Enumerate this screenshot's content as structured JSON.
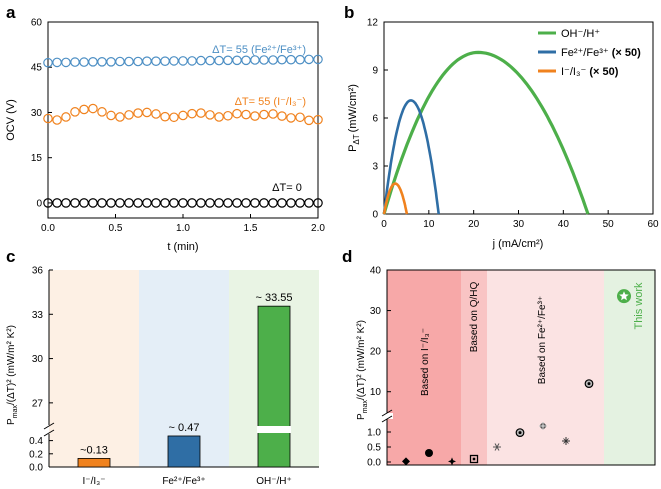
{
  "colors": {
    "green": "#4daf4a",
    "blue": "#2f6ea5",
    "orange": "#f0821e",
    "black": "#000000"
  },
  "chart_data": [
    {
      "panel": "a",
      "type": "scatter",
      "xlabel": "t (min)",
      "ylabel": "OCV (V)",
      "xlim": [
        0,
        2.0
      ],
      "ylim": [
        -5,
        60
      ],
      "xticks": [
        "0.0",
        "0.5",
        "1.0",
        "1.5",
        "2.0"
      ],
      "yticks": [
        "0",
        "15",
        "30",
        "45",
        "60"
      ],
      "series": [
        {
          "name": "ΔT= 55 (Fe²⁺/Fe³⁺)",
          "color": "#4d8fc4",
          "x": [
            0,
            0.067,
            0.133,
            0.2,
            0.267,
            0.333,
            0.4,
            0.467,
            0.533,
            0.6,
            0.667,
            0.733,
            0.8,
            0.867,
            0.933,
            1.0,
            1.067,
            1.133,
            1.2,
            1.267,
            1.333,
            1.4,
            1.467,
            1.533,
            1.6,
            1.667,
            1.733,
            1.8,
            1.867,
            1.933,
            2.0
          ],
          "values": [
            46.5,
            46.6,
            46.6,
            46.7,
            46.7,
            46.8,
            46.8,
            46.8,
            46.9,
            46.9,
            46.9,
            47.0,
            47.0,
            47.0,
            47.1,
            47.1,
            47.1,
            47.2,
            47.2,
            47.2,
            47.3,
            47.3,
            47.3,
            47.4,
            47.4,
            47.4,
            47.5,
            47.5,
            47.5,
            47.6,
            47.6
          ]
        },
        {
          "name": "ΔT= 55 (I⁻/I₃⁻)",
          "color": "#f0821e",
          "x": [
            0,
            0.067,
            0.133,
            0.2,
            0.267,
            0.333,
            0.4,
            0.467,
            0.533,
            0.6,
            0.667,
            0.733,
            0.8,
            0.867,
            0.933,
            1.0,
            1.067,
            1.133,
            1.2,
            1.267,
            1.333,
            1.4,
            1.467,
            1.533,
            1.6,
            1.667,
            1.733,
            1.8,
            1.867,
            1.933,
            2.0
          ],
          "values": [
            28.0,
            27.5,
            28.5,
            30.2,
            31.0,
            31.3,
            30.2,
            29.0,
            28.5,
            29.2,
            29.8,
            30.0,
            29.5,
            28.6,
            28.4,
            29.0,
            29.6,
            29.8,
            29.2,
            28.5,
            28.9,
            29.6,
            29.3,
            28.8,
            29.3,
            29.5,
            28.8,
            28.2,
            28.4,
            27.4,
            27.6
          ]
        },
        {
          "name": "ΔT= 0",
          "color": "#000000",
          "x": [
            0,
            0.067,
            0.133,
            0.2,
            0.267,
            0.333,
            0.4,
            0.467,
            0.533,
            0.6,
            0.667,
            0.733,
            0.8,
            0.867,
            0.933,
            1.0,
            1.067,
            1.133,
            1.2,
            1.267,
            1.333,
            1.4,
            1.467,
            1.533,
            1.6,
            1.667,
            1.733,
            1.8,
            1.867,
            1.933,
            2.0
          ],
          "values": [
            0,
            0,
            0,
            0,
            0,
            0,
            0,
            0,
            0,
            0,
            0,
            0,
            0,
            0,
            0,
            0,
            0,
            0,
            0,
            0,
            0,
            0,
            0,
            0,
            0,
            0,
            0,
            0,
            0,
            0,
            0
          ]
        }
      ]
    },
    {
      "panel": "b",
      "type": "line",
      "xlabel": "j (mA/cm²)",
      "ylabel_main": "P",
      "ylabel_sub": "ΔT",
      "ylabel_unit": "(mW/cm²)",
      "xlim": [
        0,
        60
      ],
      "ylim": [
        0,
        12
      ],
      "xticks": [
        "0",
        "10",
        "20",
        "30",
        "40",
        "50",
        "60"
      ],
      "yticks": [
        "0",
        "3",
        "6",
        "9",
        "12"
      ],
      "legend_position": "top-right",
      "series": [
        {
          "name": "OH⁻/H⁺",
          "color": "#4daf4a",
          "jsc": 45.5,
          "x_peak": 21,
          "pmax": 10.1
        },
        {
          "name": "Fe²⁺/Fe³⁺",
          "suffix": "(× 50)",
          "color": "#2f6ea5",
          "jsc": 12.2,
          "x_peak": 6,
          "pmax": 7.1
        },
        {
          "name": "I⁻/I₃⁻",
          "suffix": "(× 50)",
          "color": "#f0821e",
          "jsc": 5.1,
          "x_peak": 2.5,
          "pmax": 1.9
        }
      ]
    },
    {
      "panel": "c",
      "type": "bar",
      "ylabel": "Pmax/(ΔT)² (mW/m² K²)",
      "categories": [
        "I⁻/I₃⁻",
        "Fe²⁺/Fe³⁺",
        "OH⁻/H⁺"
      ],
      "values": [
        0.13,
        0.47,
        33.55
      ],
      "data_labels": [
        "~0.13",
        "~ 0.47",
        "~ 33.55"
      ],
      "colors": [
        "#f0821e",
        "#2f6ea5",
        "#4daf4a"
      ],
      "bg_colors": [
        "#fdf0e4",
        "#e4eef7",
        "#e9f4e4"
      ],
      "ylim_lower": [
        0,
        0.5
      ],
      "ylim_upper": [
        25.5,
        36
      ],
      "yticks_lower": [
        "0.0",
        "0.2",
        "0.4"
      ],
      "yticks_upper": [
        "27",
        "30",
        "33",
        "36"
      ]
    },
    {
      "panel": "d",
      "type": "scatter",
      "ylabel": "Pmax/(ΔT)² (mW/m² K²)",
      "ylim_lower": [
        -0.1,
        1.4
      ],
      "ylim_upper": [
        5,
        40
      ],
      "yticks_lower": [
        "0.0",
        "0.5",
        "1.0"
      ],
      "yticks_upper": [
        "10",
        "20",
        "30",
        "40"
      ],
      "regions": [
        {
          "label": "Based on I⁻/I₃⁻",
          "color": "#f7a8a8"
        },
        {
          "label": "Based on Q/HQ",
          "color": "#f9c4c4"
        },
        {
          "label": "Based on Fe²⁺/Fe³⁺",
          "color": "#fbe3e3"
        },
        {
          "label": "This work",
          "color": "#e4f2e1"
        }
      ],
      "points": [
        {
          "marker": "diamond",
          "value": 0.02
        },
        {
          "marker": "circle",
          "value": 0.3
        },
        {
          "marker": "star4",
          "value": 0.02
        },
        {
          "marker": "square-dot",
          "value": 0.1
        },
        {
          "marker": "asterisk",
          "value": 0.5
        },
        {
          "marker": "circle-dot",
          "value": 0.98
        },
        {
          "marker": "cross-diamond",
          "value": 1.2
        },
        {
          "marker": "plus-cross",
          "value": 0.7
        },
        {
          "marker": "circle-dot",
          "value": 12
        },
        {
          "marker": "star-circle",
          "value": 33.55,
          "color": "#4daf4a"
        }
      ]
    }
  ],
  "labels": {
    "panel_a": "a",
    "panel_b": "b",
    "panel_c": "c",
    "panel_d": "d",
    "b_legend_green": "OH⁻/H⁺",
    "b_legend_blue": "Fe²⁺/Fe³⁺",
    "b_legend_orange": "I⁻/I₃⁻",
    "b_legend_suffix": "(× 50)",
    "a_label_fe": "ΔT= 55 (Fe²⁺/Fe³⁺)",
    "a_label_i": "ΔT= 55 (I⁻/I₃⁻)",
    "a_label_0": "ΔT= 0",
    "c_ylabel_main": "P",
    "c_ylabel_sub": "max",
    "c_ylabel_rest": "/(ΔT)² (mW/m² K²)",
    "d_region1": "Based on I⁻/I₃⁻",
    "d_region2": "Based on Q/HQ",
    "d_region3": "Based on Fe²⁺/Fe³⁺",
    "d_region4": "This work",
    "tick_a_x": [
      "0.0",
      "0.5",
      "1.0",
      "1.5",
      "2.0"
    ],
    "tick_a_y": [
      "0",
      "15",
      "30",
      "45",
      "60"
    ]
  }
}
